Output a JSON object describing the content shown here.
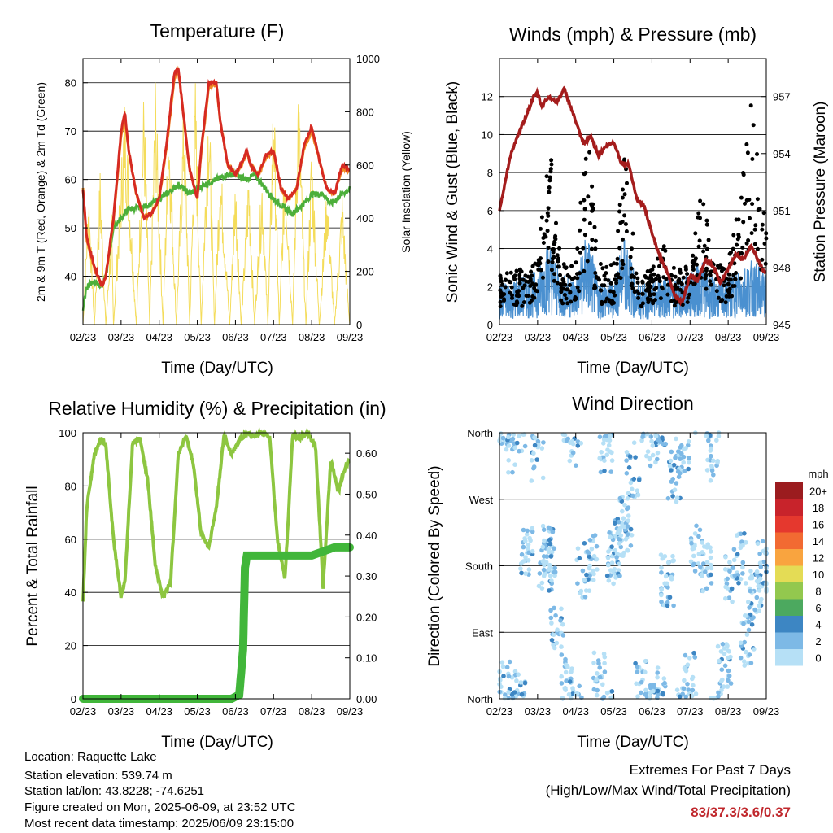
{
  "x_ticks": [
    "02/23",
    "03/23",
    "04/23",
    "05/23",
    "06/23",
    "07/23",
    "08/23",
    "09/23"
  ],
  "time_label": "Time (Day/UTC)",
  "colors": {
    "temp_red": "#d62a22",
    "temp_orange": "#f08a24",
    "dewpoint": "#4caf3a",
    "insolation": "#f4dc5a",
    "gust": "#000000",
    "wind": "#4a90d0",
    "pressure": "#a41c1c",
    "rh": "#8dc640",
    "precip": "#41b63a",
    "extremes": "#c0282d"
  },
  "chart_data": [
    {
      "type": "line",
      "title": "Temperature (F)",
      "ylabel": "2m & 9m T (Red, Orange) & 2m Td (Green)",
      "y2label": "Solar Insolation (Yellow)",
      "ylim": [
        30,
        85
      ],
      "y2lim": [
        0,
        1000
      ],
      "y_ticks": [
        "40",
        "50",
        "60",
        "70",
        "80"
      ],
      "y2_ticks": [
        "0",
        "200",
        "400",
        "600",
        "800",
        "1000"
      ],
      "grid": true,
      "series": [
        {
          "name": "2m T",
          "x": [
            0,
            0.1,
            0.3,
            0.5,
            0.6,
            0.8,
            1.0,
            1.1,
            1.2,
            1.4,
            1.6,
            1.8,
            2.0,
            2.2,
            2.4,
            2.5,
            2.6,
            2.8,
            3.0,
            3.1,
            3.3,
            3.5,
            3.6,
            3.8,
            4.0,
            4.2,
            4.3,
            4.4,
            4.6,
            4.8,
            5.0,
            5.2,
            5.4,
            5.6,
            5.8,
            6.0,
            6.2,
            6.4,
            6.6,
            6.8,
            7.0
          ],
          "y": [
            58,
            48,
            42,
            38,
            40,
            52,
            70,
            74,
            66,
            57,
            52,
            53,
            56,
            68,
            82,
            83,
            76,
            62,
            56,
            66,
            80,
            80,
            72,
            63,
            61,
            64,
            66,
            63,
            61,
            65,
            66,
            58,
            56,
            58,
            67,
            71,
            64,
            58,
            57,
            63,
            62
          ]
        },
        {
          "name": "9m T",
          "x": [
            0,
            0.1,
            0.3,
            0.5,
            0.6,
            0.8,
            1.0,
            1.1,
            1.2,
            1.4,
            1.6,
            1.8,
            2.0,
            2.2,
            2.4,
            2.5,
            2.6,
            2.8,
            3.0,
            3.1,
            3.3,
            3.5,
            3.6,
            3.8,
            4.0,
            4.2,
            4.3,
            4.4,
            4.6,
            4.8,
            5.0,
            5.2,
            5.4,
            5.6,
            5.8,
            6.0,
            6.2,
            6.4,
            6.6,
            6.8,
            7.0
          ],
          "y": [
            58,
            47.5,
            41.5,
            38,
            40,
            51.5,
            69,
            73,
            66,
            57,
            52,
            53,
            56,
            67,
            81,
            82.5,
            76,
            62,
            56,
            65.5,
            79,
            79.5,
            72,
            63,
            61,
            63.5,
            65.5,
            63,
            61,
            64.5,
            65.5,
            58,
            56,
            58,
            66.5,
            70,
            64,
            58,
            57,
            62.5,
            61.5
          ]
        },
        {
          "name": "2m Td",
          "x": [
            0,
            0.1,
            0.3,
            0.5,
            0.6,
            0.8,
            1.0,
            1.2,
            1.5,
            1.8,
            2.0,
            2.2,
            2.5,
            2.8,
            3.0,
            3.2,
            3.5,
            3.8,
            4.0,
            4.3,
            4.5,
            4.7,
            5.0,
            5.3,
            5.5,
            5.8,
            6.0,
            6.3,
            6.5,
            6.8,
            7.0
          ],
          "y": [
            33,
            38,
            39,
            38,
            40,
            50,
            52,
            54,
            54,
            55,
            56,
            57,
            59,
            57,
            58,
            59,
            60,
            61,
            61,
            60,
            61,
            59,
            56,
            54,
            53,
            55,
            57,
            57,
            55,
            57,
            58
          ]
        },
        {
          "name": "Solar Insolation",
          "x": [
            0,
            0.15,
            0.3,
            0.45,
            0.6,
            0.75,
            0.8,
            1.1,
            1.4,
            1.6,
            1.75,
            1.9,
            2.1,
            2.25,
            2.45,
            2.65,
            2.8,
            2.95,
            3.1,
            3.3,
            3.45,
            3.6,
            3.85,
            4.0,
            4.15,
            4.35,
            4.5,
            4.7,
            4.85,
            5.0,
            5.15,
            5.3,
            5.5,
            5.65,
            5.85,
            6.0,
            6.2,
            6.4,
            6.6,
            6.8,
            6.95,
            7.0
          ],
          "y": [
            0,
            560,
            0,
            600,
            0,
            420,
            0,
            900,
            0,
            920,
            0,
            960,
            0,
            880,
            0,
            900,
            0,
            940,
            0,
            950,
            0,
            680,
            0,
            600,
            0,
            620,
            0,
            600,
            0,
            960,
            0,
            700,
            0,
            980,
            0,
            720,
            0,
            560,
            0,
            520,
            120,
            0
          ]
        }
      ]
    },
    {
      "type": "scatter",
      "title": "Winds (mph) & Pressure (mb)",
      "ylabel": "Sonic Wind & Gust (Blue, Black)",
      "y2label": "Station Pressure (Maroon)",
      "ylim": [
        0,
        14
      ],
      "y2lim": [
        945,
        959
      ],
      "y_ticks": [
        "0",
        "2",
        "4",
        "6",
        "8",
        "10",
        "12"
      ],
      "y2_ticks": [
        "945",
        "948",
        "951",
        "954",
        "957"
      ],
      "grid": true,
      "series": [
        {
          "name": "Pressure",
          "x": [
            0,
            0.3,
            0.6,
            0.9,
            1.0,
            1.1,
            1.3,
            1.5,
            1.7,
            2.0,
            2.2,
            2.4,
            2.6,
            2.8,
            3.0,
            3.2,
            3.4,
            3.6,
            3.8,
            4.0,
            4.2,
            4.4,
            4.6,
            4.8,
            5.0,
            5.2,
            5.4,
            5.6,
            5.8,
            6.0,
            6.2,
            6.4,
            6.6,
            6.8,
            7.0
          ],
          "y": [
            951,
            954,
            955.5,
            957,
            957.2,
            956.5,
            957,
            956.7,
            957.4,
            955.7,
            954.5,
            954.9,
            953.9,
            954.4,
            954.6,
            953.5,
            953.4,
            951.6,
            951.2,
            949.8,
            948.6,
            947.8,
            946.5,
            946.2,
            947.6,
            947.3,
            948.4,
            948.1,
            947.2,
            947.9,
            948.7,
            948.4,
            949.2,
            948.3,
            947.6
          ]
        },
        {
          "name": "Sonic Wind",
          "x": [
            0,
            0.5,
            1.0,
            1.3,
            1.6,
            2.0,
            2.3,
            2.6,
            3.0,
            3.3,
            3.6,
            4.0,
            4.3,
            4.6,
            5.0,
            5.3,
            5.6,
            6.0,
            6.3,
            6.6,
            7.0
          ],
          "y": [
            1.2,
            1.4,
            1.6,
            2.6,
            1.5,
            1.4,
            2.8,
            1.3,
            1.4,
            2.9,
            1.2,
            1.2,
            1.6,
            1.3,
            1.5,
            1.9,
            1.4,
            1.4,
            1.7,
            1.9,
            1.6
          ]
        },
        {
          "name": "Gust",
          "x": [
            0,
            0.5,
            1.0,
            1.3,
            1.6,
            2.0,
            2.3,
            2.6,
            3.0,
            3.3,
            3.6,
            4.0,
            4.3,
            4.6,
            5.0,
            5.3,
            5.6,
            6.0,
            6.3,
            6.6,
            7.0
          ],
          "y": [
            2.4,
            2.6,
            3.2,
            9.0,
            3.1,
            3.0,
            9.7,
            2.9,
            3.0,
            8.6,
            2.7,
            2.6,
            4.1,
            2.7,
            2.9,
            6.6,
            3.2,
            3.0,
            6.0,
            11.6,
            4.8
          ]
        }
      ]
    },
    {
      "type": "line",
      "title": "Relative Humidity (%) & Precipitation (in)",
      "ylabel": "Percent & Total Rainfall",
      "ylim": [
        0,
        100
      ],
      "y2lim": [
        0,
        0.65
      ],
      "y_ticks": [
        "0",
        "20",
        "40",
        "60",
        "80",
        "100"
      ],
      "y2_ticks": [
        "0.00",
        "0.10",
        "0.20",
        "0.30",
        "0.40",
        "0.50",
        "0.60"
      ],
      "grid": true,
      "series": [
        {
          "name": "RH",
          "x": [
            0,
            0.1,
            0.3,
            0.5,
            0.6,
            0.8,
            1.0,
            1.1,
            1.3,
            1.5,
            1.7,
            1.9,
            2.1,
            2.3,
            2.5,
            2.7,
            2.9,
            3.1,
            3.3,
            3.5,
            3.7,
            3.9,
            4.1,
            4.3,
            4.5,
            4.7,
            4.9,
            5.1,
            5.3,
            5.5,
            5.7,
            5.9,
            6.1,
            6.3,
            6.5,
            6.7,
            6.9,
            7.0
          ],
          "y": [
            36,
            72,
            92,
            98,
            95,
            60,
            38,
            44,
            96,
            98,
            82,
            50,
            38,
            44,
            92,
            99,
            88,
            62,
            57,
            72,
            99,
            92,
            97,
            100,
            99,
            100,
            98,
            60,
            45,
            99,
            98,
            100,
            95,
            42,
            90,
            78,
            88,
            90
          ]
        },
        {
          "name": "Precipitation",
          "x": [
            0,
            0.5,
            1.0,
            2.0,
            3.0,
            3.7,
            3.9,
            4.1,
            4.2,
            4.25,
            4.3,
            4.4,
            5.0,
            6.0,
            6.3,
            6.6,
            7.0
          ],
          "y": [
            0,
            0,
            0,
            0,
            0,
            0,
            0,
            0.01,
            0.12,
            0.32,
            0.35,
            0.35,
            0.35,
            0.35,
            0.36,
            0.37,
            0.37
          ]
        }
      ]
    },
    {
      "type": "scatter",
      "title": "Wind Direction",
      "ylabel": "Direction (Colored By Speed)",
      "y_ticks": [
        "North",
        "East",
        "South",
        "West",
        "North"
      ],
      "legend": {
        "title": "mph",
        "labels": [
          "20+",
          "18",
          "16",
          "14",
          "12",
          "10",
          "8",
          "6",
          "4",
          "2",
          "0"
        ],
        "colors": [
          "#9b1c1f",
          "#c8232b",
          "#e5382e",
          "#f26a32",
          "#f9a43f",
          "#e4dc55",
          "#93c84e",
          "#4ca95f",
          "#3d86c3",
          "#7db9e6",
          "#b6e0f6"
        ]
      },
      "series": [
        {
          "name": "Direction",
          "x": [
            0.1,
            0.3,
            0.5,
            0.7,
            1.0,
            1.2,
            1.3,
            1.5,
            1.8,
            2.0,
            2.2,
            2.4,
            2.6,
            2.8,
            3.0,
            3.2,
            3.3,
            3.5,
            3.7,
            4.0,
            4.2,
            4.4,
            4.6,
            4.8,
            5.0,
            5.2,
            5.4,
            5.6,
            5.9,
            6.1,
            6.3,
            6.5,
            6.7,
            6.9
          ],
          "y": [
            20,
            340,
            10,
            200,
            330,
            180,
            200,
            90,
            20,
            350,
            170,
            195,
            30,
            340,
            190,
            210,
            240,
            300,
            20,
            350,
            10,
            160,
            300,
            340,
            30,
            200,
            180,
            330,
            40,
            160,
            190,
            80,
            140,
            180
          ]
        }
      ]
    }
  ],
  "footer": {
    "location": "Location: Raquette Lake",
    "elevation": "Station elevation: 539.74 m",
    "latlon": "Station lat/lon: 43.8228; -74.6251",
    "created": "Figure created on Mon, 2025-06-09, at 23:52 UTC",
    "recent": "Most recent data timestamp: 2025/06/09 23:15:00"
  },
  "extremes": {
    "title": "Extremes For Past 7 Days",
    "subtitle": "(High/Low/Max Wind/Total Precipitation)",
    "values": "83/37.3/3.6/0.37"
  }
}
